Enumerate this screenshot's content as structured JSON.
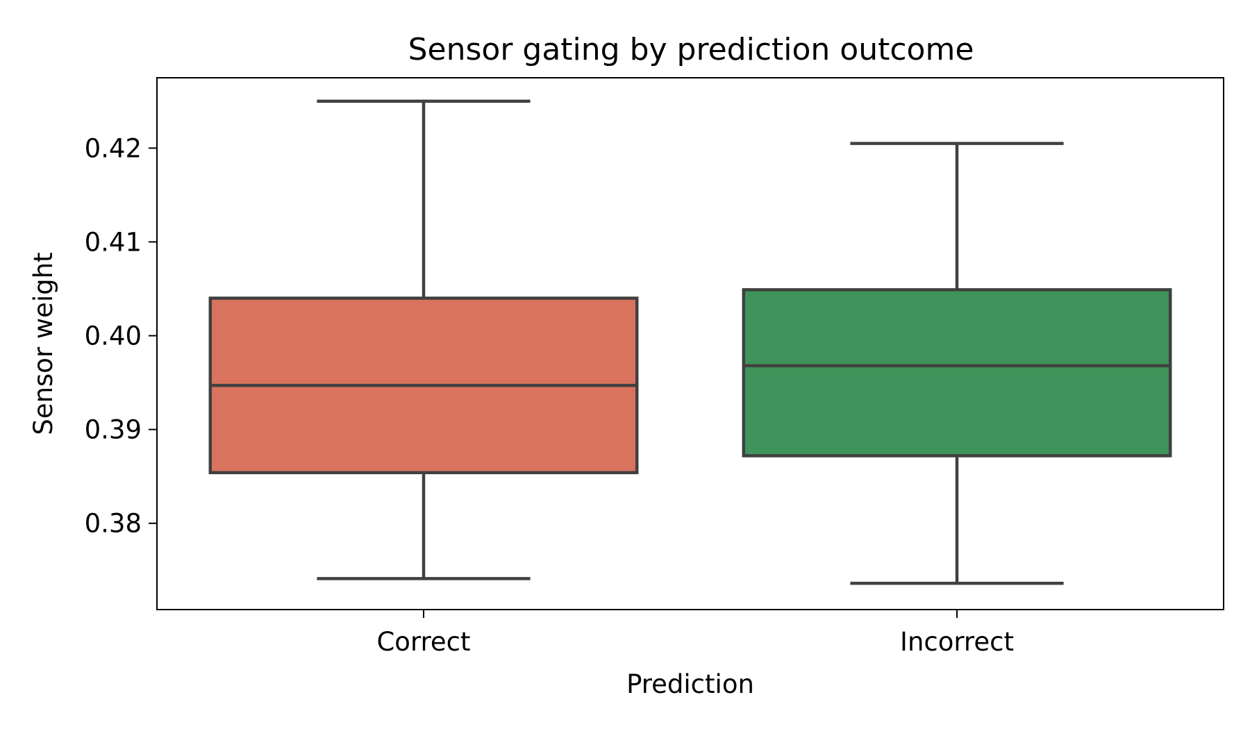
{
  "chart_data": {
    "type": "box",
    "title": "Sensor gating by prediction outcome",
    "xlabel": "Prediction",
    "ylabel": "Sensor weight",
    "categories": [
      "Correct",
      "Incorrect"
    ],
    "ylim": [
      0.3708,
      0.4275
    ],
    "yticks": [
      0.38,
      0.39,
      0.4,
      0.41,
      0.42
    ],
    "ytick_labels": [
      "0.38",
      "0.39",
      "0.40",
      "0.41",
      "0.42"
    ],
    "grid": false,
    "legend": "none",
    "boxes": [
      {
        "category": "Correct",
        "whisker_low": 0.3741,
        "q1": 0.3854,
        "median": 0.3947,
        "q3": 0.404,
        "whisker_high": 0.425,
        "color": "#d9735e"
      },
      {
        "category": "Incorrect",
        "whisker_low": 0.3736,
        "q1": 0.3872,
        "median": 0.3968,
        "q3": 0.4049,
        "whisker_high": 0.4205,
        "color": "#3e945a"
      }
    ],
    "edge_color": "#404040"
  }
}
